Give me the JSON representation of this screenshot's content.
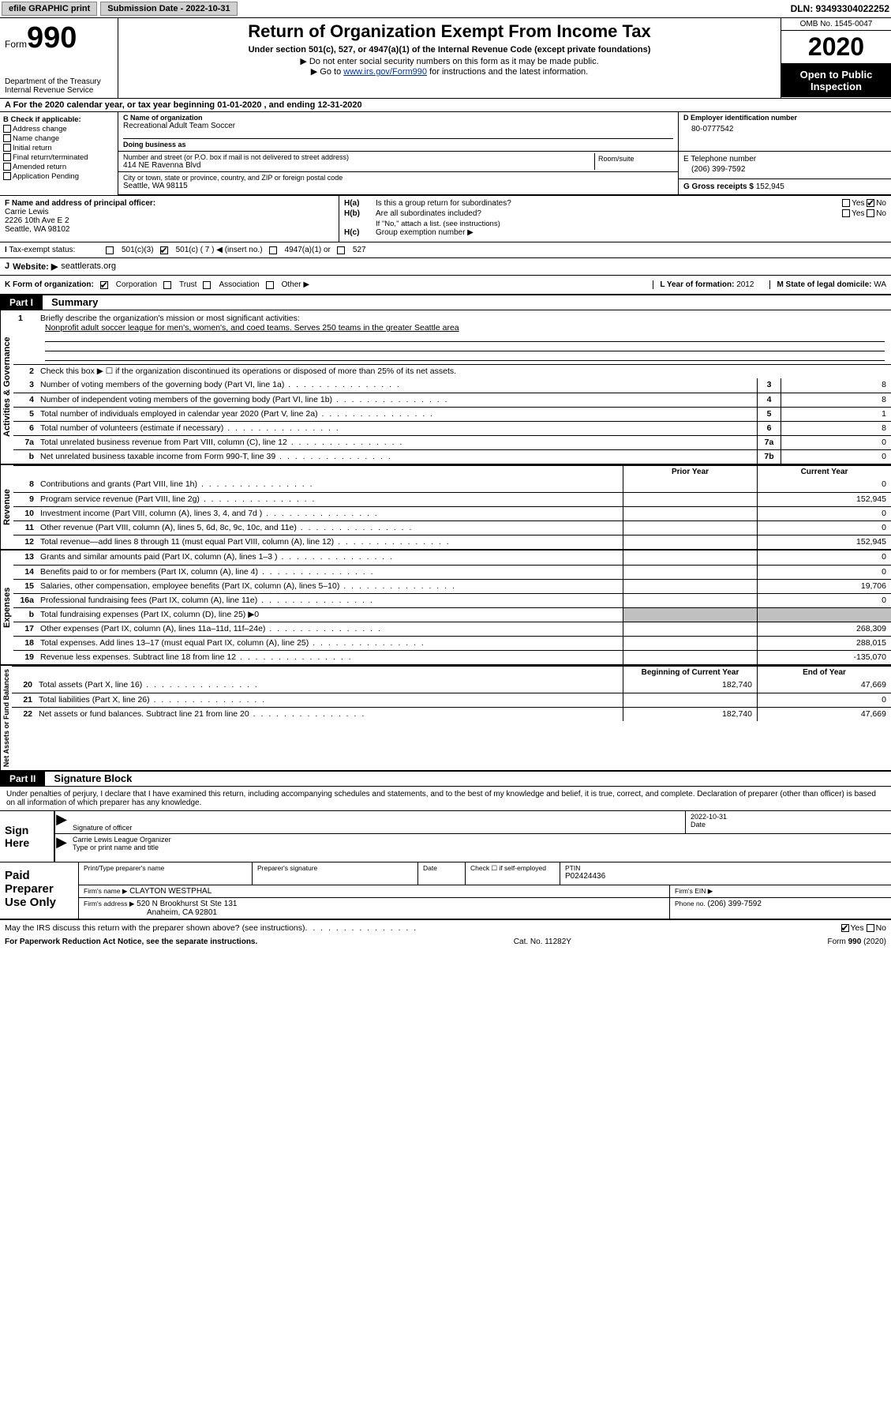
{
  "topbar": {
    "efile": "efile GRAPHIC print",
    "submission_label": "Submission Date - 2022-10-31",
    "dln": "DLN: 93493304022252"
  },
  "header": {
    "form_prefix": "Form",
    "form_number": "990",
    "dept": "Department of the Treasury",
    "irs": "Internal Revenue Service",
    "title": "Return of Organization Exempt From Income Tax",
    "subtitle": "Under section 501(c), 527, or 4947(a)(1) of the Internal Revenue Code (except private foundations)",
    "note1": "Do not enter social security numbers on this form as it may be made public.",
    "note2_pre": "Go to ",
    "note2_link": "www.irs.gov/Form990",
    "note2_post": " for instructions and the latest information.",
    "omb": "OMB No. 1545-0047",
    "year": "2020",
    "open_public": "Open to Public Inspection"
  },
  "line_a": "For the 2020 calendar year, or tax year beginning 01-01-2020   , and ending 12-31-2020",
  "box_b": {
    "hdr": "B Check if applicable:",
    "items": [
      "Address change",
      "Name change",
      "Initial return",
      "Final return/terminated",
      "Amended return",
      "Application Pending"
    ]
  },
  "box_c": {
    "lbl": "C Name of organization",
    "name": "Recreational Adult Team Soccer",
    "dba_lbl": "Doing business as",
    "addr_lbl": "Number and street (or P.O. box if mail is not delivered to street address)",
    "room_lbl": "Room/suite",
    "addr": "414 NE Ravenna Blvd",
    "city_lbl": "City or town, state or province, country, and ZIP or foreign postal code",
    "city": "Seattle, WA  98115"
  },
  "box_d": {
    "lbl": "D Employer identification number",
    "val": "80-0777542"
  },
  "box_e": {
    "lbl": "E Telephone number",
    "val": "(206) 399-7592"
  },
  "box_g": {
    "lbl": "G Gross receipts $",
    "val": "152,945"
  },
  "box_f": {
    "lbl": "F  Name and address of principal officer:",
    "name": "Carrie Lewis",
    "addr1": "2226 10th Ave E 2",
    "addr2": "Seattle, WA  98102"
  },
  "box_h": {
    "a_lbl": "H(a)",
    "a_text": "Is this a group return for subordinates?",
    "a_no_checked": true,
    "b_lbl": "H(b)",
    "b_text": "Are all subordinates included?",
    "b_note": "If \"No,\" attach a list. (see instructions)",
    "c_lbl": "H(c)",
    "c_text": "Group exemption number ▶"
  },
  "tax_status": {
    "lbl": "Tax-exempt status:",
    "opt1": "501(c)(3)",
    "opt2": "501(c) ( 7 ) ◀ (insert no.)",
    "opt2_checked": true,
    "opt3": "4947(a)(1) or",
    "opt4": "527"
  },
  "box_j": {
    "lbl": "J",
    "text": "Website: ▶",
    "val": "seattlerats.org"
  },
  "box_k": {
    "lbl": "K Form of organization:",
    "corp": "Corporation",
    "corp_checked": true,
    "trust": "Trust",
    "assoc": "Association",
    "other": "Other ▶"
  },
  "box_l": {
    "lbl": "L Year of formation:",
    "val": "2012"
  },
  "box_m": {
    "lbl": "M State of legal domicile:",
    "val": "WA"
  },
  "part1": {
    "num": "Part I",
    "title": "Summary"
  },
  "mission": {
    "num": "1",
    "lbl": "Briefly describe the organization's mission or most significant activities:",
    "text": "Nonprofit adult soccer league for men's, women's, and coed teams. Serves 250 teams in the greater Seattle area"
  },
  "line2": {
    "num": "2",
    "text": "Check this box ▶ ☐  if the organization discontinued its operations or disposed of more than 25% of its net assets."
  },
  "vert_labels": {
    "gov": "Activities & Governance",
    "rev": "Revenue",
    "exp": "Expenses",
    "net": "Net Assets or Fund Balances"
  },
  "lines_gov": [
    {
      "n": "3",
      "t": "Number of voting members of the governing body (Part VI, line 1a)",
      "c": "3",
      "v": "8"
    },
    {
      "n": "4",
      "t": "Number of independent voting members of the governing body (Part VI, line 1b)",
      "c": "4",
      "v": "8"
    },
    {
      "n": "5",
      "t": "Total number of individuals employed in calendar year 2020 (Part V, line 2a)",
      "c": "5",
      "v": "1"
    },
    {
      "n": "6",
      "t": "Total number of volunteers (estimate if necessary)",
      "c": "6",
      "v": "8"
    },
    {
      "n": "7a",
      "t": "Total unrelated business revenue from Part VIII, column (C), line 12",
      "c": "7a",
      "v": "0"
    },
    {
      "n": "b",
      "t": "Net unrelated business taxable income from Form 990-T, line 39",
      "c": "7b",
      "v": "0"
    }
  ],
  "col_hdrs": {
    "prior": "Prior Year",
    "current": "Current Year"
  },
  "lines_rev": [
    {
      "n": "8",
      "t": "Contributions and grants (Part VIII, line 1h)",
      "p": "",
      "c": "0"
    },
    {
      "n": "9",
      "t": "Program service revenue (Part VIII, line 2g)",
      "p": "",
      "c": "152,945"
    },
    {
      "n": "10",
      "t": "Investment income (Part VIII, column (A), lines 3, 4, and 7d )",
      "p": "",
      "c": "0"
    },
    {
      "n": "11",
      "t": "Other revenue (Part VIII, column (A), lines 5, 6d, 8c, 9c, 10c, and 11e)",
      "p": "",
      "c": "0"
    },
    {
      "n": "12",
      "t": "Total revenue—add lines 8 through 11 (must equal Part VIII, column (A), line 12)",
      "p": "",
      "c": "152,945"
    }
  ],
  "lines_exp": [
    {
      "n": "13",
      "t": "Grants and similar amounts paid (Part IX, column (A), lines 1–3 )",
      "p": "",
      "c": "0"
    },
    {
      "n": "14",
      "t": "Benefits paid to or for members (Part IX, column (A), line 4)",
      "p": "",
      "c": "0"
    },
    {
      "n": "15",
      "t": "Salaries, other compensation, employee benefits (Part IX, column (A), lines 5–10)",
      "p": "",
      "c": "19,706"
    },
    {
      "n": "16a",
      "t": "Professional fundraising fees (Part IX, column (A), line 11e)",
      "p": "",
      "c": "0"
    },
    {
      "n": "b",
      "t": "Total fundraising expenses (Part IX, column (D), line 25) ▶0",
      "shaded": true
    },
    {
      "n": "17",
      "t": "Other expenses (Part IX, column (A), lines 11a–11d, 11f–24e)",
      "p": "",
      "c": "268,309"
    },
    {
      "n": "18",
      "t": "Total expenses. Add lines 13–17 (must equal Part IX, column (A), line 25)",
      "p": "",
      "c": "288,015"
    },
    {
      "n": "19",
      "t": "Revenue less expenses. Subtract line 18 from line 12",
      "p": "",
      "c": "-135,070"
    }
  ],
  "col_hdrs2": {
    "beg": "Beginning of Current Year",
    "end": "End of Year"
  },
  "lines_net": [
    {
      "n": "20",
      "t": "Total assets (Part X, line 16)",
      "p": "182,740",
      "c": "47,669"
    },
    {
      "n": "21",
      "t": "Total liabilities (Part X, line 26)",
      "p": "",
      "c": "0"
    },
    {
      "n": "22",
      "t": "Net assets or fund balances. Subtract line 21 from line 20",
      "p": "182,740",
      "c": "47,669"
    }
  ],
  "part2": {
    "num": "Part II",
    "title": "Signature Block"
  },
  "sig_intro": "Under penalties of perjury, I declare that I have examined this return, including accompanying schedules and statements, and to the best of my knowledge and belief, it is true, correct, and complete. Declaration of preparer (other than officer) is based on all information of which preparer has any knowledge.",
  "sign_here": "Sign Here",
  "sig": {
    "sig_lbl": "Signature of officer",
    "date_lbl": "Date",
    "date": "2022-10-31",
    "name": "Carrie Lewis League Organizer",
    "name_lbl": "Type or print name and title"
  },
  "prep_lbl": "Paid Preparer Use Only",
  "prep": {
    "name_lbl": "Print/Type preparer's name",
    "sig_lbl": "Preparer's signature",
    "date_lbl": "Date",
    "check_lbl": "Check ☐ if self-employed",
    "ptin_lbl": "PTIN",
    "ptin": "P02424436",
    "firm_name_lbl": "Firm's name    ▶",
    "firm_name": "CLAYTON WESTPHAL",
    "firm_ein_lbl": "Firm's EIN ▶",
    "firm_addr_lbl": "Firm's address ▶",
    "firm_addr1": "520 N Brookhurst St Ste 131",
    "firm_addr2": "Anaheim, CA  92801",
    "phone_lbl": "Phone no.",
    "phone": "(206) 399-7592"
  },
  "irs_discuss": {
    "text": "May the IRS discuss this return with the preparer shown above? (see instructions)",
    "yes_checked": true
  },
  "footer": {
    "left": "For Paperwork Reduction Act Notice, see the separate instructions.",
    "mid": "Cat. No. 11282Y",
    "right_pre": "Form ",
    "right_bold": "990",
    "right_post": " (2020)"
  },
  "yn": {
    "yes": "Yes",
    "no": "No"
  }
}
